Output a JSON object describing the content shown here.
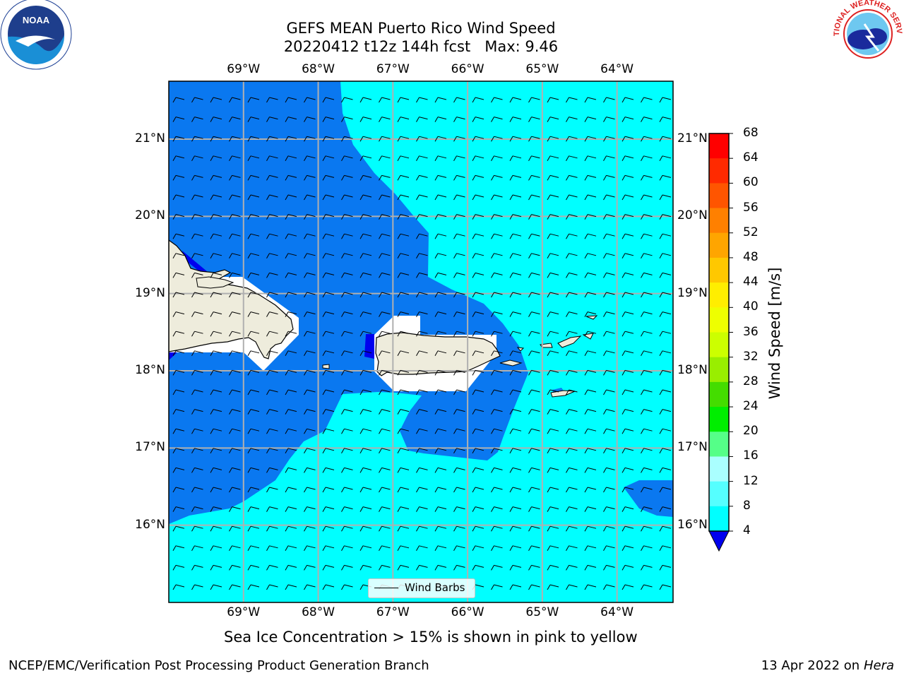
{
  "title": {
    "line1": "GEFS MEAN Puerto Rico Wind Speed",
    "line2": "20220412 t12z 144h fcst   Max: 9.46"
  },
  "logos": {
    "left": {
      "icon": "noaa-logo-icon",
      "text": "NOAA",
      "ring_text": "NATIONAL OCEANIC AND ATMOSPHERIC ADMINISTRATION · U.S. DEPARTMENT OF COMMERCE"
    },
    "right": {
      "icon": "nws-logo-icon",
      "ring_text": "NATIONAL WEATHER SERVICE"
    }
  },
  "map": {
    "lon_ticks": [
      "69°W",
      "68°W",
      "67°W",
      "66°W",
      "65°W",
      "64°W"
    ],
    "lat_ticks": [
      "21°N",
      "20°N",
      "19°N",
      "18°N",
      "17°N",
      "16°N"
    ],
    "lon_range": [
      -70.0,
      -63.25
    ],
    "lat_range": [
      15.0,
      21.75
    ],
    "grid": true,
    "legend": {
      "label": "Wind Barbs",
      "placement": "bottom-center"
    }
  },
  "colorbar": {
    "label": "Wind Speed [m/s]",
    "ticks": [
      "68",
      "64",
      "60",
      "56",
      "52",
      "48",
      "44",
      "40",
      "36",
      "32",
      "28",
      "24",
      "20",
      "16",
      "12",
      "8",
      "4"
    ],
    "colors": [
      "#ff0000",
      "#ff2a00",
      "#ff5500",
      "#ff8000",
      "#ffa500",
      "#ffc800",
      "#ffee00",
      "#eeff00",
      "#ccff00",
      "#99ee00",
      "#44dd00",
      "#00ee00",
      "#55ff88",
      "#aaffff",
      "#55ffff",
      "#00ffff",
      "#0077ff"
    ],
    "under_color": "#0000ee",
    "land_color": "#eeecdc",
    "ocean_low_color": "#0a78f0",
    "ocean_high_color": "#00ffff"
  },
  "note": "Sea Ice Concentration > 15% is shown in pink to yellow",
  "footer": {
    "left": "NCEP/EMC/Verification Post Processing Product Generation Branch",
    "date": "13 Apr 2022 on ",
    "machine": "Hera"
  }
}
